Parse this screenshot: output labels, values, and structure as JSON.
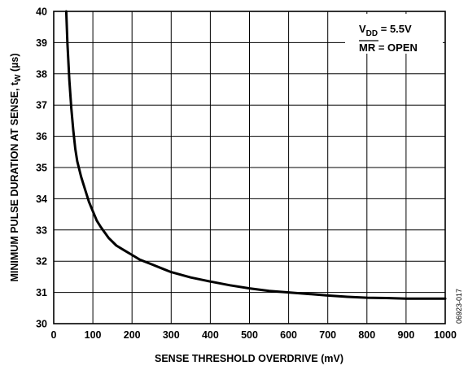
{
  "chart_data": {
    "type": "line",
    "xlabel": "SENSE THRESHOLD OVERDRIVE (mV)",
    "ylabel_main": "MINIMUM PULSE DURATION AT SENSE, t",
    "ylabel_sub": "W",
    "ylabel_unit": " (µs)",
    "xlim": [
      0,
      1000
    ],
    "ylim": [
      30,
      40
    ],
    "x_ticks": [
      0,
      100,
      200,
      300,
      400,
      500,
      600,
      700,
      800,
      900,
      1000
    ],
    "y_ticks": [
      30,
      31,
      32,
      33,
      34,
      35,
      36,
      37,
      38,
      39,
      40
    ],
    "grid": true,
    "annotations": {
      "vdd_main": "V",
      "vdd_sub": "DD",
      "vdd_rest": " = 5.5V",
      "mr_main": "MR",
      "mr_rest": " = OPEN"
    },
    "figure_id": "06923-017",
    "series": [
      {
        "x": [
          32,
          35,
          40,
          45,
          50,
          55,
          60,
          70,
          80,
          90,
          100,
          110,
          120,
          140,
          160,
          180,
          200,
          220,
          250,
          280,
          300,
          350,
          400,
          450,
          500,
          550,
          600,
          650,
          700,
          750,
          800,
          850,
          900,
          950,
          1000
        ],
        "values": [
          40.0,
          39.0,
          37.8,
          36.9,
          36.2,
          35.6,
          35.2,
          34.7,
          34.3,
          33.9,
          33.6,
          33.3,
          33.1,
          32.75,
          32.5,
          32.35,
          32.2,
          32.05,
          31.9,
          31.75,
          31.65,
          31.48,
          31.35,
          31.23,
          31.13,
          31.05,
          31.0,
          30.95,
          30.9,
          30.86,
          30.83,
          30.82,
          30.8,
          30.8,
          30.8
        ]
      }
    ]
  }
}
